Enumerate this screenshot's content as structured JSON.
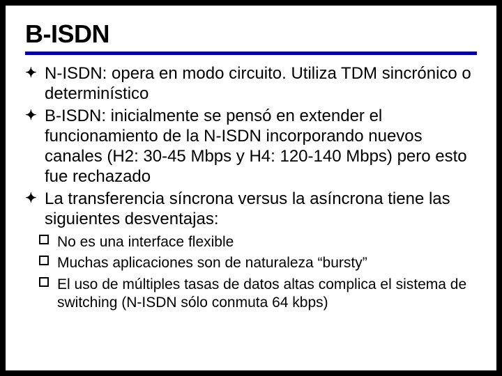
{
  "title": "B-ISDN",
  "colors": {
    "page_bg": "#000000",
    "slide_bg": "#ffffff",
    "hr": "#000099",
    "text": "#000000"
  },
  "typography": {
    "title_fontsize": 36,
    "bullet_fontsize": 24,
    "sub_fontsize": 21,
    "font_family": "Arial"
  },
  "bullets": [
    {
      "text": "N-ISDN: opera en modo circuito. Utiliza TDM sincrónico o determinístico"
    },
    {
      "text": "B-ISDN: inicialmente se pensó en extender el funcionamiento de la N-ISDN incorporando nuevos canales (H2: 30-45 Mbps y H4: 120-140 Mbps) pero esto fue rechazado"
    },
    {
      "text": "La transferencia síncrona versus la asíncrona tiene las siguientes desventajas:"
    }
  ],
  "sub_bullets": [
    {
      "text": "No es una interface flexible"
    },
    {
      "text": "Muchas aplicaciones son de naturaleza “bursty”"
    },
    {
      "text": "El uso de múltiples tasas de datos altas complica el sistema de switching (N-ISDN sólo conmuta 64 kbps)"
    }
  ],
  "main_bullet_glyph": "✦",
  "sub_bullet_shape": "hollow-square"
}
